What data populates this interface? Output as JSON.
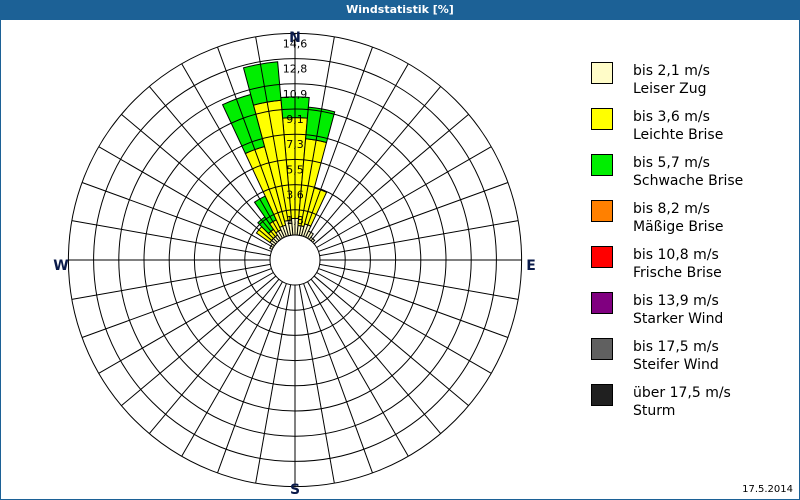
{
  "window": {
    "title": "Windstatistik [%]"
  },
  "footer": {
    "date": "17.5.2014"
  },
  "compass": {
    "n": "N",
    "e": "E",
    "s": "S",
    "w": "W",
    "color": "#0a1a4a"
  },
  "legend": [
    {
      "range": "bis 2,1 m/s",
      "name": "Leiser Zug",
      "color": "#fffcc8"
    },
    {
      "range": "bis 3,6 m/s",
      "name": "Leichte Brise",
      "color": "#ffff00"
    },
    {
      "range": "bis 5,7 m/s",
      "name": "Schwache Brise",
      "color": "#00ee00"
    },
    {
      "range": "bis 8,2 m/s",
      "name": "Mäßige Brise",
      "color": "#ff8000"
    },
    {
      "range": "bis 10,8 m/s",
      "name": "Frische Brise",
      "color": "#ff0000"
    },
    {
      "range": "bis 13,9 m/s",
      "name": "Starker Wind",
      "color": "#800080"
    },
    {
      "range": "bis 17,5 m/s",
      "name": "Steifer Wind",
      "color": "#606060"
    },
    {
      "range": "über 17,5 m/s",
      "name": "Sturm",
      "color": "#202020"
    }
  ],
  "chart_data": {
    "type": "polar-stacked-bar",
    "title": "Windstatistik [%]",
    "unit": "%",
    "sector_width_deg": 10,
    "ring_labels": [
      "1,8",
      "3,6",
      "5,5",
      "7,3",
      "9,1",
      "10,9",
      "12,8",
      "14,6"
    ],
    "ring_values": [
      1.8,
      3.6,
      5.5,
      7.3,
      9.1,
      10.9,
      12.8,
      14.6
    ],
    "rmax_value": 14.6,
    "series": [
      {
        "name": "bis 2,1 m/s Leiser Zug",
        "color": "#fffcc8"
      },
      {
        "name": "bis 3,6 m/s Leichte Brise",
        "color": "#ffff00"
      },
      {
        "name": "bis 5,7 m/s Schwache Brise",
        "color": "#00ee00"
      },
      {
        "name": "bis 8,2 m/s Mäßige Brise",
        "color": "#ff8000"
      },
      {
        "name": "bis 10,8 m/s Frische Brise",
        "color": "#ff0000"
      },
      {
        "name": "bis 13,9 m/s Starker Wind",
        "color": "#800080"
      },
      {
        "name": "bis 17,5 m/s Steifer Wind",
        "color": "#606060"
      },
      {
        "name": "über 17,5 m/s Sturm",
        "color": "#202020"
      }
    ],
    "directions_deg": [
      0,
      10,
      20,
      30,
      40,
      300,
      310,
      320,
      330,
      340,
      350
    ],
    "values_by_direction": [
      {
        "deg": 0,
        "values": [
          1.2,
          7.3,
          1.5,
          0,
          0,
          0,
          0,
          0
        ]
      },
      {
        "deg": 10,
        "values": [
          0.7,
          6.3,
          2.3,
          0,
          0,
          0,
          0,
          0
        ]
      },
      {
        "deg": 20,
        "values": [
          0.9,
          2.7,
          0,
          0,
          0,
          0,
          0,
          0
        ]
      },
      {
        "deg": 30,
        "values": [
          0.5,
          0,
          0,
          0,
          0,
          0,
          0,
          0
        ]
      },
      {
        "deg": 40,
        "values": [
          0.2,
          0,
          0,
          0,
          0,
          0,
          0,
          0
        ]
      },
      {
        "deg": 300,
        "values": [
          0.2,
          0,
          0,
          0,
          0,
          0,
          0,
          0
        ]
      },
      {
        "deg": 310,
        "values": [
          0.4,
          1.2,
          0,
          0,
          0,
          0,
          0,
          0
        ]
      },
      {
        "deg": 320,
        "values": [
          0.4,
          0.5,
          1.1,
          0,
          0,
          0,
          0,
          0
        ]
      },
      {
        "deg": 330,
        "values": [
          0.6,
          0.8,
          1.9,
          0,
          0,
          0,
          0,
          0
        ]
      },
      {
        "deg": 340,
        "values": [
          0.8,
          5.9,
          3.9,
          0,
          0,
          0,
          0,
          0
        ]
      },
      {
        "deg": 350,
        "values": [
          1.1,
          8.7,
          2.8,
          0,
          0,
          0,
          0,
          0
        ]
      }
    ],
    "grid": true
  }
}
